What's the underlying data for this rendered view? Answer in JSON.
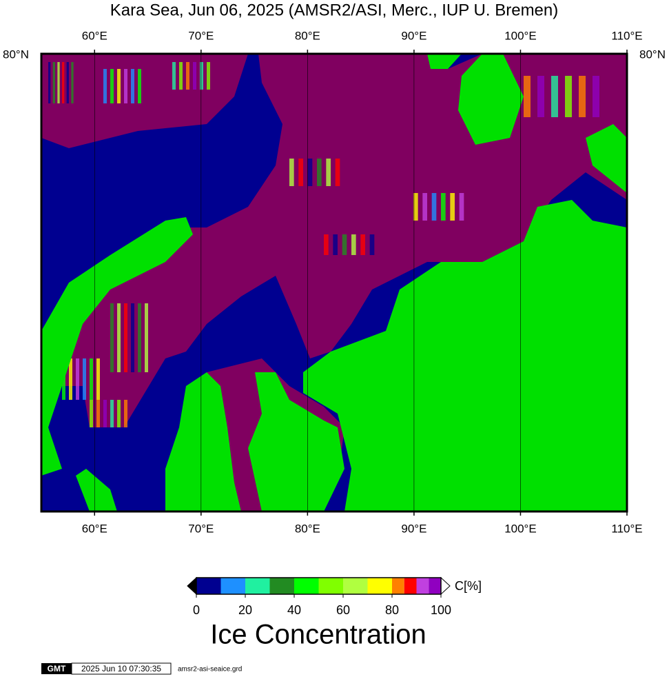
{
  "title": "Kara Sea, Jun 06, 2025 (AMSR2/ASI, Merc., IUP U. Bremen)",
  "map": {
    "xlim": [
      55,
      110
    ],
    "lon_ticks": [
      {
        "value": 60,
        "label": "60°E"
      },
      {
        "value": 70,
        "label": "70°E"
      },
      {
        "value": 80,
        "label": "80°E"
      },
      {
        "value": 90,
        "label": "90°E"
      },
      {
        "value": 100,
        "label": "100°E"
      },
      {
        "value": 110,
        "label": "110°E"
      }
    ],
    "lat_tick_label": "80°N",
    "ocean_color": "#000090",
    "ice_color": "#800060",
    "land_color": "#00e000"
  },
  "colorbar": {
    "range": [
      0,
      100
    ],
    "segments": [
      {
        "from": 0,
        "to": 10,
        "color": "#000090"
      },
      {
        "from": 10,
        "to": 20,
        "color": "#1e90ff"
      },
      {
        "from": 20,
        "to": 30,
        "color": "#20f0a0"
      },
      {
        "from": 30,
        "to": 40,
        "color": "#228b22"
      },
      {
        "from": 40,
        "to": 50,
        "color": "#00ff00"
      },
      {
        "from": 50,
        "to": 60,
        "color": "#80ff00"
      },
      {
        "from": 60,
        "to": 70,
        "color": "#b0ff40"
      },
      {
        "from": 70,
        "to": 80,
        "color": "#ffff00"
      },
      {
        "from": 80,
        "to": 85,
        "color": "#ff8000"
      },
      {
        "from": 85,
        "to": 90,
        "color": "#ff0000"
      },
      {
        "from": 90,
        "to": 95,
        "color": "#c040e0"
      },
      {
        "from": 95,
        "to": 100,
        "color": "#9000c0"
      }
    ],
    "under_color": "#000000",
    "over_color": "#ffffff",
    "ticks": [
      0,
      20,
      40,
      60,
      80,
      100
    ],
    "unit": "C[%]",
    "label": "Ice Concentration"
  },
  "footer": {
    "logo": "GMT",
    "timestamp": "2025 Jun 10 07:30:35",
    "file": "amsr2-asi-seaice.grd"
  }
}
